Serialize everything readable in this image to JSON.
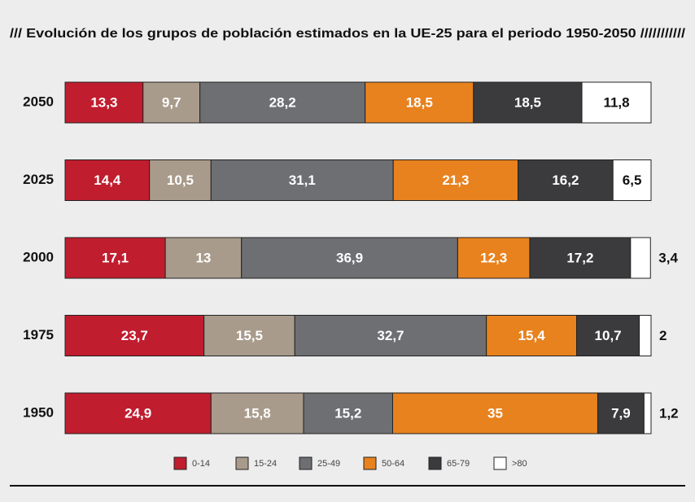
{
  "chart_data": {
    "type": "stacked-bar-horizontal",
    "title": "/// Evolución de los grupos de población estimados en la UE-25 para el periodo 1950-2050 ///////////",
    "categories": [
      "2050",
      "2025",
      "2000",
      "1975",
      "1950"
    ],
    "xlim": [
      0,
      100
    ],
    "series": [
      {
        "name": "0-14",
        "color": "#c01d2e",
        "values": [
          13.3,
          14.4,
          17.1,
          23.7,
          24.9
        ],
        "value_labels": [
          "13,3",
          "14,4",
          "17,1",
          "23,7",
          "24,9"
        ]
      },
      {
        "name": "15-24",
        "color": "#a99b8b",
        "values": [
          9.7,
          10.5,
          13,
          15.5,
          15.8
        ],
        "value_labels": [
          "9,7",
          "10,5",
          "13",
          "15,5",
          "15,8"
        ]
      },
      {
        "name": "25-49",
        "color": "#6e6f73",
        "values": [
          28.2,
          31.1,
          36.9,
          32.7,
          15.2
        ],
        "value_labels": [
          "28,2",
          "31,1",
          "36,9",
          "32,7",
          "15,2"
        ]
      },
      {
        "name": "50-64",
        "color": "#e8821e",
        "values": [
          18.5,
          21.3,
          12.3,
          15.4,
          35
        ],
        "value_labels": [
          "18,5",
          "21,3",
          "12,3",
          "15,4",
          "35"
        ]
      },
      {
        "name": "65-79",
        "color": "#3b3b3d",
        "values": [
          18.5,
          16.2,
          17.2,
          10.7,
          7.9
        ],
        "value_labels": [
          "18,5",
          "16,2",
          "17,2",
          "10,7",
          "7,9"
        ]
      },
      {
        "name": ">80",
        "color": "#ffffff",
        "values": [
          11.8,
          6.5,
          3.4,
          2,
          1.2
        ],
        "value_labels": [
          "11,8",
          "6,5",
          "3,4",
          "2",
          "1,2"
        ]
      }
    ]
  }
}
